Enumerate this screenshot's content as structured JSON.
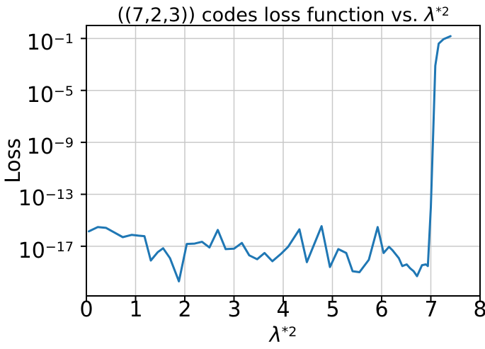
{
  "figure": {
    "title": {
      "prefix": "((7,2,3)) codes loss function vs. ",
      "symbol": "λ",
      "superscript": "*2"
    },
    "ylabel": "Loss",
    "xlabel": {
      "symbol": "λ",
      "superscript": "*2"
    }
  },
  "chart_data": {
    "type": "line",
    "title": "((7,2,3)) codes loss function vs. λ^(*2)",
    "xlabel": "λ^(*2)",
    "ylabel": "Loss",
    "xscale": "linear",
    "yscale": "log",
    "xlim": [
      0,
      8
    ],
    "ylim": [
      1.5e-21,
      1.0
    ],
    "grid": true,
    "legend": "none",
    "xticks": [
      0,
      1,
      2,
      3,
      4,
      5,
      6,
      7,
      8
    ],
    "xtick_labels": [
      "0",
      "1",
      "2",
      "3",
      "4",
      "5",
      "6",
      "7",
      "8"
    ],
    "ytick_base": "10",
    "ytick_exponents": [
      -1,
      -5,
      -9,
      -13,
      -17
    ],
    "line_color": "#1f77b4",
    "grid_color": "#c9c9c9",
    "axis_color": "#000000",
    "series": [
      {
        "name": "loss",
        "points": [
          [
            0.05,
            1.4e-16
          ],
          [
            0.23,
            3e-16
          ],
          [
            0.4,
            2.6e-16
          ],
          [
            0.56,
            1.2e-16
          ],
          [
            0.74,
            5e-17
          ],
          [
            0.92,
            7.5e-17
          ],
          [
            1.06,
            6.5e-17
          ],
          [
            1.18,
            6e-17
          ],
          [
            1.31,
            8e-19
          ],
          [
            1.45,
            3.5e-18
          ],
          [
            1.56,
            7e-18
          ],
          [
            1.7,
            1.2e-18
          ],
          [
            1.88,
            2e-20
          ],
          [
            2.04,
            1.5e-17
          ],
          [
            2.2,
            1.6e-17
          ],
          [
            2.35,
            2.2e-17
          ],
          [
            2.5,
            8e-18
          ],
          [
            2.67,
            1.8e-16
          ],
          [
            2.83,
            6e-18
          ],
          [
            3.0,
            6.5e-18
          ],
          [
            3.16,
            1.8e-17
          ],
          [
            3.31,
            2e-18
          ],
          [
            3.47,
            1e-18
          ],
          [
            3.62,
            3e-18
          ],
          [
            3.78,
            7e-19
          ],
          [
            3.95,
            2.5e-18
          ],
          [
            4.1,
            9e-18
          ],
          [
            4.33,
            2e-16
          ],
          [
            4.48,
            6e-19
          ],
          [
            4.78,
            3.5e-16
          ],
          [
            4.95,
            2.5e-19
          ],
          [
            5.12,
            6e-18
          ],
          [
            5.28,
            3e-18
          ],
          [
            5.41,
            1.2e-19
          ],
          [
            5.55,
            1e-19
          ],
          [
            5.74,
            9e-19
          ],
          [
            5.92,
            3e-16
          ],
          [
            6.04,
            3e-18
          ],
          [
            6.15,
            9e-18
          ],
          [
            6.22,
            5e-18
          ],
          [
            6.35,
            1.2e-18
          ],
          [
            6.42,
            3e-19
          ],
          [
            6.51,
            4e-19
          ],
          [
            6.58,
            2e-19
          ],
          [
            6.65,
            1.2e-19
          ],
          [
            6.72,
            5e-20
          ],
          [
            6.82,
            3.5e-19
          ],
          [
            6.9,
            4e-19
          ],
          [
            6.94,
            3e-19
          ],
          [
            7.0,
            1e-14
          ],
          [
            7.05,
            1e-08
          ],
          [
            7.09,
            0.0008
          ],
          [
            7.16,
            0.04
          ],
          [
            7.26,
            0.09
          ],
          [
            7.4,
            0.15
          ]
        ]
      }
    ]
  }
}
